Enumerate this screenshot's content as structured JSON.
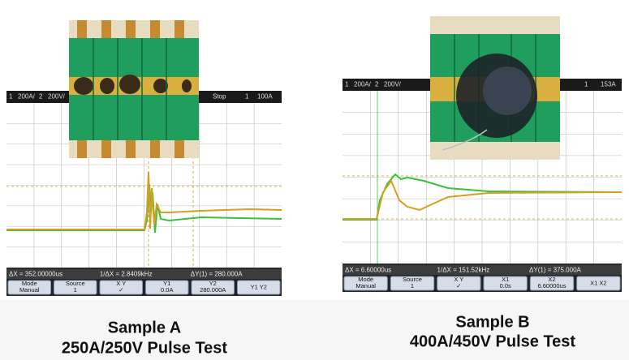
{
  "panels": [
    {
      "header": {
        "ch1": "1",
        "ch1_scale": "200A/",
        "ch2": "2",
        "ch2_scale": "200V/",
        "status": "Stop",
        "trig_ch": "1",
        "trig_level": "100A"
      },
      "measurements": [
        "ΔX = 352.00000us",
        "1/ΔX = 2.8409kHz",
        "ΔY(1) = 280.000A"
      ],
      "softkeys": [
        {
          "lines": [
            "Mode",
            "Manual"
          ]
        },
        {
          "lines": [
            "Source",
            "1"
          ]
        },
        {
          "lines": [
            "X    Y",
            "✓"
          ]
        },
        {
          "lines": [
            "Y1",
            "0.0A"
          ]
        },
        {
          "lines": [
            "Y2",
            "280.000A"
          ]
        },
        {
          "lines": [
            "Y1 Y2"
          ]
        }
      ],
      "caption": {
        "title": "Sample A",
        "subtitle": "250A/250V Pulse Test"
      }
    },
    {
      "header": {
        "ch1": "1",
        "ch1_scale": "200A/",
        "ch2": "2",
        "ch2_scale": "200V/",
        "trig_ch": "1",
        "trig_level": "153A"
      },
      "measurements": [
        "ΔX = 6.60000us",
        "1/ΔX = 151.52kHz",
        "ΔY(1) = 375.000A"
      ],
      "softkeys": [
        {
          "lines": [
            "Mode",
            "Manual"
          ]
        },
        {
          "lines": [
            "Source",
            "1"
          ]
        },
        {
          "lines": [
            "X    Y",
            "✓"
          ]
        },
        {
          "lines": [
            "X1",
            "0.0s"
          ]
        },
        {
          "lines": [
            "X2",
            "6.60000us"
          ]
        },
        {
          "lines": [
            "X1 X2"
          ]
        }
      ],
      "caption": {
        "title": "Sample B",
        "subtitle": "400A/450V Pulse Test"
      }
    }
  ]
}
